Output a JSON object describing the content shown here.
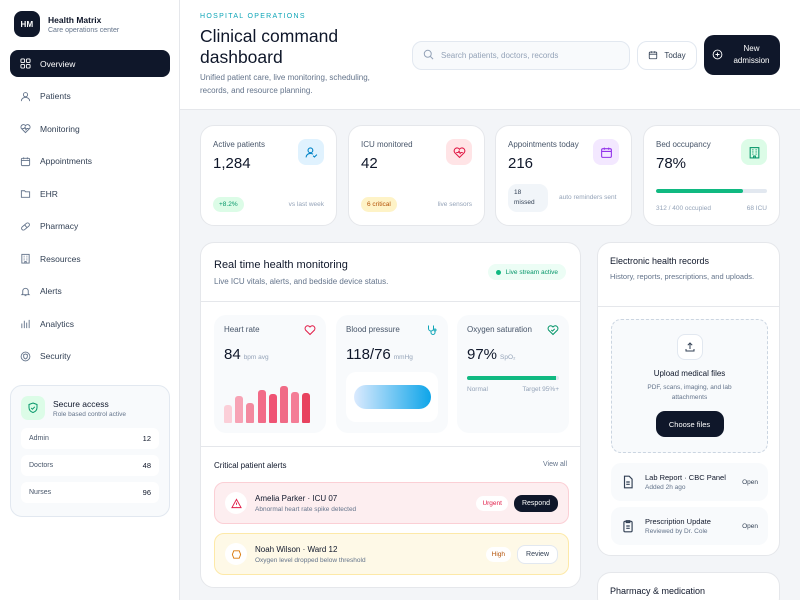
{
  "brand": {
    "initials": "HM",
    "name": "Health Matrix",
    "subtitle": "Care operations center"
  },
  "nav": [
    {
      "label": "Overview",
      "icon": "grid-icon",
      "active": true
    },
    {
      "label": "Patients",
      "icon": "user-icon"
    },
    {
      "label": "Monitoring",
      "icon": "heart-pulse-icon"
    },
    {
      "label": "Appointments",
      "icon": "calendar-icon"
    },
    {
      "label": "EHR",
      "icon": "folder-icon"
    },
    {
      "label": "Pharmacy",
      "icon": "pill-icon"
    },
    {
      "label": "Resources",
      "icon": "building-icon"
    },
    {
      "label": "Alerts",
      "icon": "bell-icon"
    },
    {
      "label": "Analytics",
      "icon": "bar-chart-icon"
    },
    {
      "label": "Security",
      "icon": "shield-icon"
    }
  ],
  "secure": {
    "title": "Secure access",
    "subtitle": "Role based control active",
    "roles": [
      {
        "name": "Admin",
        "count": "12"
      },
      {
        "name": "Doctors",
        "count": "48"
      },
      {
        "name": "Nurses",
        "count": "96"
      }
    ]
  },
  "header": {
    "eyebrow": "HOSPITAL OPERATIONS",
    "title": "Clinical command dashboard",
    "description": "Unified patient care, live monitoring, scheduling, records, and resource planning.",
    "search_placeholder": "Search patients, doctors, records",
    "today_label": "Today",
    "new_label": "New admission"
  },
  "stats": [
    {
      "label": "Active patients",
      "value": "1,284",
      "pill": "+8.2%",
      "note": "vs last week",
      "icon": "user-check-icon"
    },
    {
      "label": "ICU monitored",
      "value": "42",
      "pill": "6 critical",
      "note": "live sensors",
      "icon": "heart-icon"
    },
    {
      "label": "Appointments today",
      "value": "216",
      "pill": "18 missed",
      "note": "auto reminders sent",
      "icon": "calendar-icon"
    },
    {
      "label": "Bed occupancy",
      "value": "78%",
      "note_left": "312 / 400 occupied",
      "note": "68 ICU",
      "occupancy": 0.78,
      "icon": "building-icon"
    }
  ],
  "monitoring": {
    "title": "Real time health monitoring",
    "subtitle": "Live ICU vitals, alerts, and bedside device status.",
    "live_label": "Live stream active",
    "heart": {
      "label": "Heart rate",
      "value": "84",
      "unit": "bpm avg",
      "bars": [
        0.45,
        0.68,
        0.5,
        0.82,
        0.72,
        0.92,
        0.78,
        0.75
      ]
    },
    "bp": {
      "label": "Blood pressure",
      "value": "118/76",
      "unit": "mmHg"
    },
    "oxygen": {
      "label": "Oxygen saturation",
      "value": "97%",
      "unit": "SpO₂",
      "level": 0.97,
      "left": "Normal",
      "right": "Target 95%+"
    },
    "alerts_title": "Critical patient alerts",
    "view_all": "View all",
    "alerts": [
      {
        "name": "Amelia Parker · ICU 07",
        "desc": "Abnormal heart rate spike detected",
        "severity": "Urgent",
        "action": "Respond"
      },
      {
        "name": "Noah Wilson · Ward 12",
        "desc": "Oxygen level dropped below threshold",
        "severity": "High",
        "action": "Review"
      }
    ]
  },
  "ehr": {
    "title": "Electronic health records",
    "subtitle": "History, reports, prescriptions, and uploads.",
    "upload_title": "Upload medical files",
    "upload_sub": "PDF, scans, imaging, and lab attachments",
    "choose_label": "Choose files",
    "records": [
      {
        "name": "Lab Report · CBC Panel",
        "meta": "Added 2h ago",
        "action": "Open"
      },
      {
        "name": "Prescription Update",
        "meta": "Reviewed by Dr. Cole",
        "action": "Open"
      }
    ]
  },
  "pharmacy": {
    "title": "Pharmacy & medication"
  },
  "colors": {
    "accent": "#0f172a",
    "success": "#10b981",
    "danger": "#e11d48",
    "teal": "#0ea5b7"
  }
}
